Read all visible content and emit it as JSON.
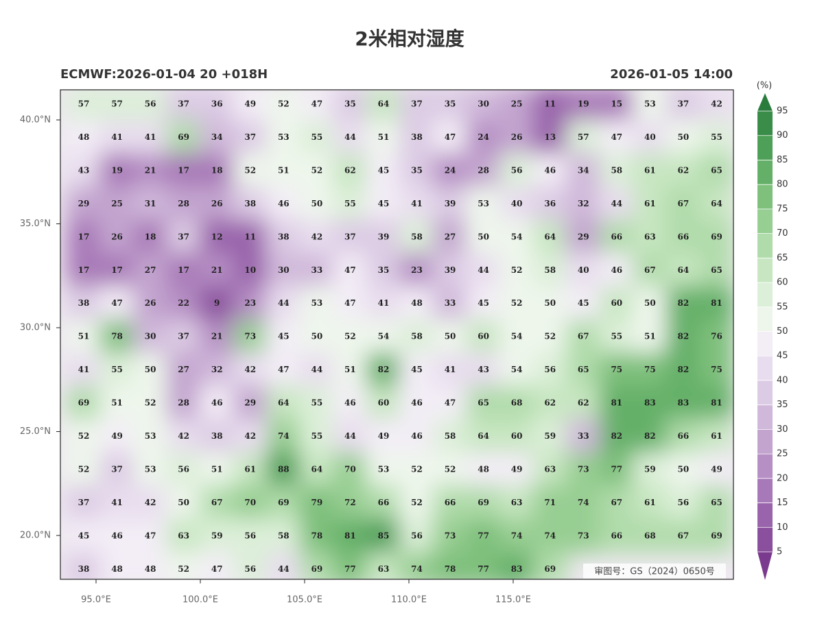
{
  "title": "2米相对湿度",
  "subtitle_left": "ECMWF:2026-01-04 20 +018H",
  "subtitle_right": "2026-01-05 14:00",
  "watermark": "审图号：GS（2024）0650号",
  "map": {
    "xlim": [
      93.29,
      125.56
    ],
    "ylim": [
      17.89,
      41.45
    ],
    "xticks": [
      {
        "value": 95,
        "label": "95.0°E"
      },
      {
        "value": 100,
        "label": "100.0°E"
      },
      {
        "value": 105,
        "label": "105.0°E"
      },
      {
        "value": 110,
        "label": "110.0°E"
      },
      {
        "value": 115,
        "label": "115.0°E"
      }
    ],
    "yticks": [
      {
        "value": 40,
        "label": "40.0°N"
      },
      {
        "value": 35,
        "label": "35.0°N"
      },
      {
        "value": 30,
        "label": "30.0°N"
      },
      {
        "value": 25,
        "label": "25.0°N"
      },
      {
        "value": 20,
        "label": "20.0°N"
      }
    ],
    "grid_values": [
      [
        57,
        57,
        56,
        37,
        36,
        49,
        52,
        47,
        35,
        64,
        37,
        35,
        30,
        25,
        11,
        19,
        15,
        53,
        37,
        42
      ],
      [
        48,
        41,
        41,
        69,
        34,
        37,
        53,
        55,
        44,
        51,
        38,
        47,
        24,
        26,
        13,
        57,
        47,
        40,
        50,
        55
      ],
      [
        43,
        19,
        21,
        17,
        18,
        52,
        51,
        52,
        62,
        45,
        35,
        24,
        28,
        56,
        46,
        34,
        58,
        61,
        62,
        65
      ],
      [
        29,
        25,
        31,
        28,
        26,
        38,
        46,
        50,
        55,
        45,
        41,
        39,
        53,
        40,
        36,
        32,
        44,
        61,
        67,
        64
      ],
      [
        17,
        26,
        18,
        37,
        12,
        11,
        38,
        42,
        37,
        39,
        58,
        27,
        50,
        54,
        64,
        29,
        66,
        63,
        66,
        69
      ],
      [
        17,
        17,
        27,
        17,
        21,
        10,
        30,
        33,
        47,
        35,
        23,
        39,
        44,
        52,
        58,
        40,
        46,
        67,
        64,
        65
      ],
      [
        38,
        47,
        26,
        22,
        9,
        23,
        44,
        53,
        47,
        41,
        48,
        33,
        45,
        52,
        50,
        45,
        60,
        50,
        82,
        81
      ],
      [
        51,
        78,
        30,
        37,
        21,
        73,
        45,
        50,
        52,
        54,
        58,
        50,
        60,
        54,
        52,
        67,
        55,
        51,
        82,
        76
      ],
      [
        41,
        55,
        50,
        27,
        32,
        42,
        47,
        44,
        51,
        82,
        45,
        41,
        43,
        54,
        56,
        65,
        75,
        75,
        82,
        75
      ],
      [
        69,
        51,
        52,
        28,
        46,
        29,
        64,
        55,
        46,
        60,
        46,
        47,
        65,
        68,
        62,
        62,
        81,
        83,
        83,
        81
      ],
      [
        52,
        49,
        53,
        42,
        38,
        42,
        74,
        55,
        44,
        49,
        46,
        58,
        64,
        60,
        59,
        33,
        82,
        82,
        66,
        61
      ],
      [
        52,
        37,
        53,
        56,
        51,
        61,
        88,
        64,
        70,
        53,
        52,
        52,
        48,
        49,
        63,
        73,
        77,
        59,
        50,
        49
      ],
      [
        37,
        41,
        42,
        50,
        67,
        70,
        69,
        79,
        72,
        66,
        52,
        66,
        69,
        63,
        71,
        74,
        67,
        61,
        56,
        65
      ],
      [
        45,
        46,
        47,
        63,
        59,
        56,
        58,
        78,
        81,
        85,
        56,
        73,
        77,
        74,
        74,
        73,
        66,
        68,
        67,
        69
      ],
      [
        38,
        48,
        48,
        52,
        47,
        56,
        44,
        69,
        77,
        63,
        74,
        78,
        77,
        83,
        69,
        null,
        null,
        null,
        null,
        null
      ]
    ]
  },
  "colorbar": {
    "label": "(%)",
    "levels": [
      5,
      10,
      15,
      20,
      25,
      30,
      35,
      40,
      45,
      50,
      55,
      60,
      65,
      70,
      75,
      80,
      85,
      90,
      95
    ],
    "colors": [
      "#7a3a8e",
      "#8a4f9d",
      "#9964ab",
      "#a879b8",
      "#b68fc4",
      "#c3a4cf",
      "#d0b8da",
      "#dccbe4",
      "#e8ddee",
      "#f3edf6",
      "#eef6ec",
      "#dcefd8",
      "#c7e6c1",
      "#b0dbaa",
      "#97ce92",
      "#7ec07c",
      "#65b069",
      "#4e9f58",
      "#3a8d49",
      "#2a7c3d"
    ]
  }
}
